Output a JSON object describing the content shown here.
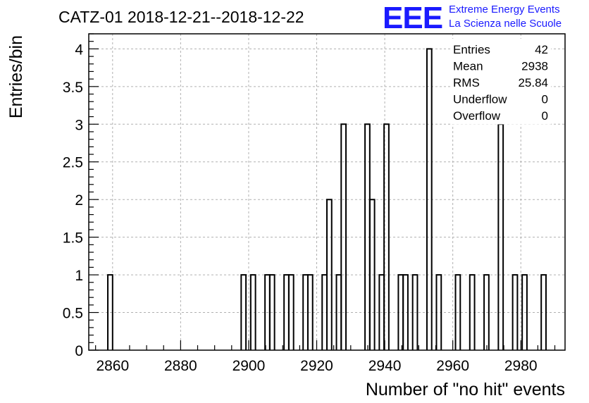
{
  "title": "CATZ-01 2018-12-21--2018-12-22",
  "logo": {
    "mark": "EEE",
    "line1": "Extreme Energy Events",
    "line2": "La Scienza nelle Scuole",
    "color": "#1a1aff"
  },
  "stats": {
    "rows": [
      {
        "label": "Entries",
        "value": "42"
      },
      {
        "label": "Mean",
        "value": "2938"
      },
      {
        "label": "RMS",
        "value": "25.84"
      },
      {
        "label": "Underflow",
        "value": "0"
      },
      {
        "label": "Overflow",
        "value": "0"
      }
    ]
  },
  "chart_data": {
    "type": "bar",
    "style": "step-histogram",
    "xlabel": "Number of \"no hit\" events",
    "ylabel": "Entries/bin",
    "xlim": [
      2853,
      2993
    ],
    "ylim": [
      0,
      4.2
    ],
    "bin_width": 1.4,
    "xticks": [
      2860,
      2880,
      2900,
      2920,
      2940,
      2960,
      2980
    ],
    "yticks": [
      0,
      0.5,
      1,
      1.5,
      2,
      2.5,
      3,
      3.5,
      4
    ],
    "ytick_labels": [
      "0",
      "0.5",
      "1",
      "1.5",
      "2",
      "2.5",
      "3",
      "3.5",
      "4"
    ],
    "grid": true,
    "line_color": "#000000",
    "bins": [
      {
        "x": 2858.6,
        "count": 1
      },
      {
        "x": 2897.8,
        "count": 1
      },
      {
        "x": 2900.6,
        "count": 1
      },
      {
        "x": 2904.8,
        "count": 1
      },
      {
        "x": 2906.2,
        "count": 1
      },
      {
        "x": 2910.4,
        "count": 1
      },
      {
        "x": 2911.8,
        "count": 1
      },
      {
        "x": 2916.0,
        "count": 1
      },
      {
        "x": 2917.4,
        "count": 1
      },
      {
        "x": 2921.6,
        "count": 1
      },
      {
        "x": 2923.0,
        "count": 2
      },
      {
        "x": 2925.8,
        "count": 1
      },
      {
        "x": 2927.2,
        "count": 3
      },
      {
        "x": 2934.2,
        "count": 3
      },
      {
        "x": 2935.6,
        "count": 2
      },
      {
        "x": 2938.4,
        "count": 1
      },
      {
        "x": 2939.8,
        "count": 3
      },
      {
        "x": 2944.0,
        "count": 1
      },
      {
        "x": 2945.4,
        "count": 1
      },
      {
        "x": 2948.2,
        "count": 1
      },
      {
        "x": 2952.4,
        "count": 4
      },
      {
        "x": 2955.2,
        "count": 1
      },
      {
        "x": 2960.8,
        "count": 1
      },
      {
        "x": 2965.0,
        "count": 1
      },
      {
        "x": 2969.2,
        "count": 1
      },
      {
        "x": 2973.4,
        "count": 3
      },
      {
        "x": 2977.6,
        "count": 1
      },
      {
        "x": 2980.4,
        "count": 1
      },
      {
        "x": 2986.0,
        "count": 1
      }
    ]
  }
}
